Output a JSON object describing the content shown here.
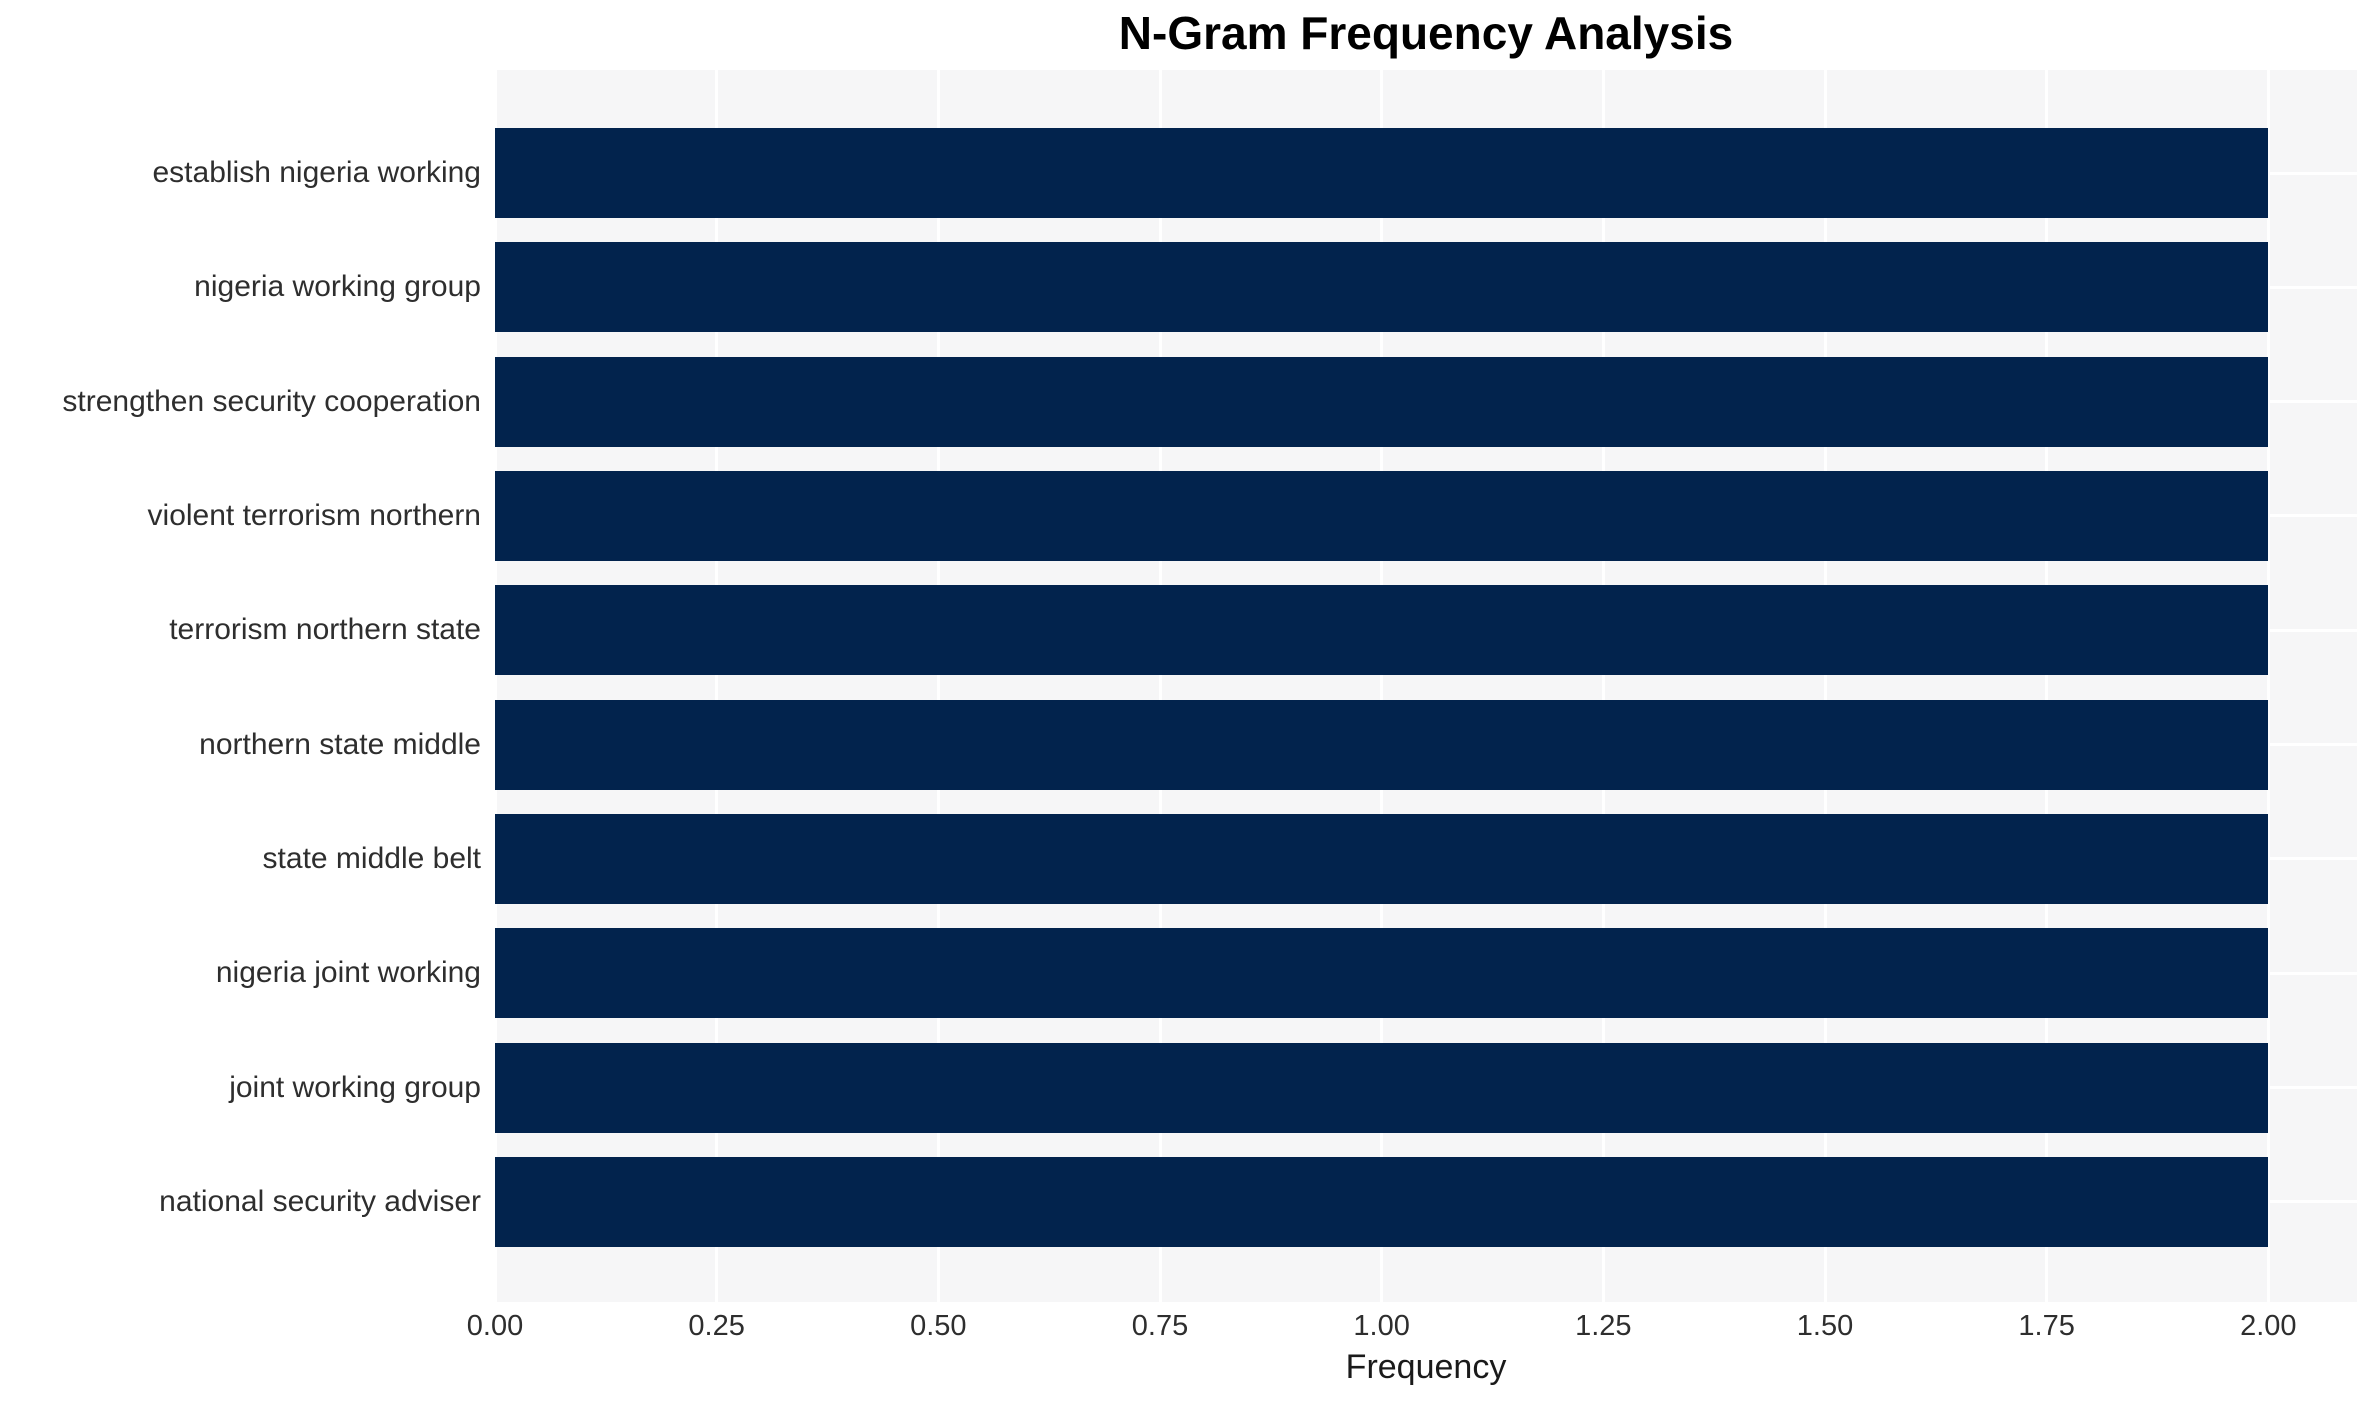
{
  "chart_data": {
    "type": "bar",
    "orientation": "horizontal",
    "title": "N-Gram Frequency Analysis",
    "xlabel": "Frequency",
    "ylabel": "",
    "categories": [
      "establish nigeria working",
      "nigeria working group",
      "strengthen security cooperation",
      "violent terrorism northern",
      "terrorism northern state",
      "northern state middle",
      "state middle belt",
      "nigeria joint working",
      "joint working group",
      "national security adviser"
    ],
    "values": [
      2,
      2,
      2,
      2,
      2,
      2,
      2,
      2,
      2,
      2
    ],
    "xlim": [
      0,
      2.1
    ],
    "xticks": [
      0,
      0.25,
      0.5,
      0.75,
      1,
      1.25,
      1.5,
      1.75,
      2
    ],
    "xtick_labels": [
      "0.00",
      "0.25",
      "0.50",
      "0.75",
      "1.00",
      "1.25",
      "1.50",
      "1.75",
      "2.00"
    ],
    "grid": true,
    "legend": false,
    "colors": {
      "bar": "#02234d",
      "plot_bg": "#f6f6f7",
      "grid": "#ffffff",
      "title": "#000000",
      "tick_label": "#2e2e2e",
      "axis_label": "#1a1a1a"
    }
  }
}
